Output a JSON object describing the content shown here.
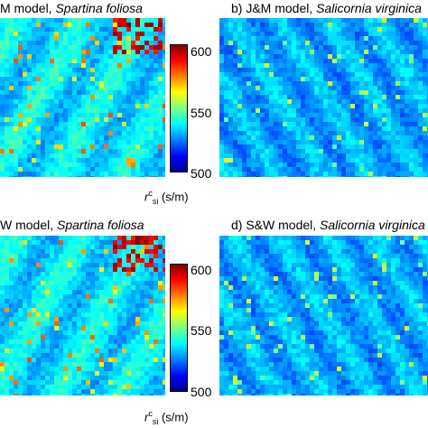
{
  "panels": [
    {
      "title_prefix": "M model, ",
      "title_species": "Spartina foliosa",
      "style": "spartina"
    },
    {
      "title_prefix": "b)  J&M model, ",
      "title_species": "Salicornia virginica",
      "style": "salicornia"
    },
    {
      "title_prefix": "W model, ",
      "title_species": "Spartina foliosa",
      "style": "spartina"
    },
    {
      "title_prefix": "d)  S&W model, ",
      "title_species": "Salicornia virginica",
      "style": "salicornia"
    }
  ],
  "colorbar": {
    "ticks": [
      "600",
      "550",
      "500"
    ],
    "min": 500,
    "max": 600,
    "label_main": "r",
    "label_sup": "c",
    "label_sub": "si",
    "label_unit": " (s/m)"
  },
  "colormap": "jet"
}
